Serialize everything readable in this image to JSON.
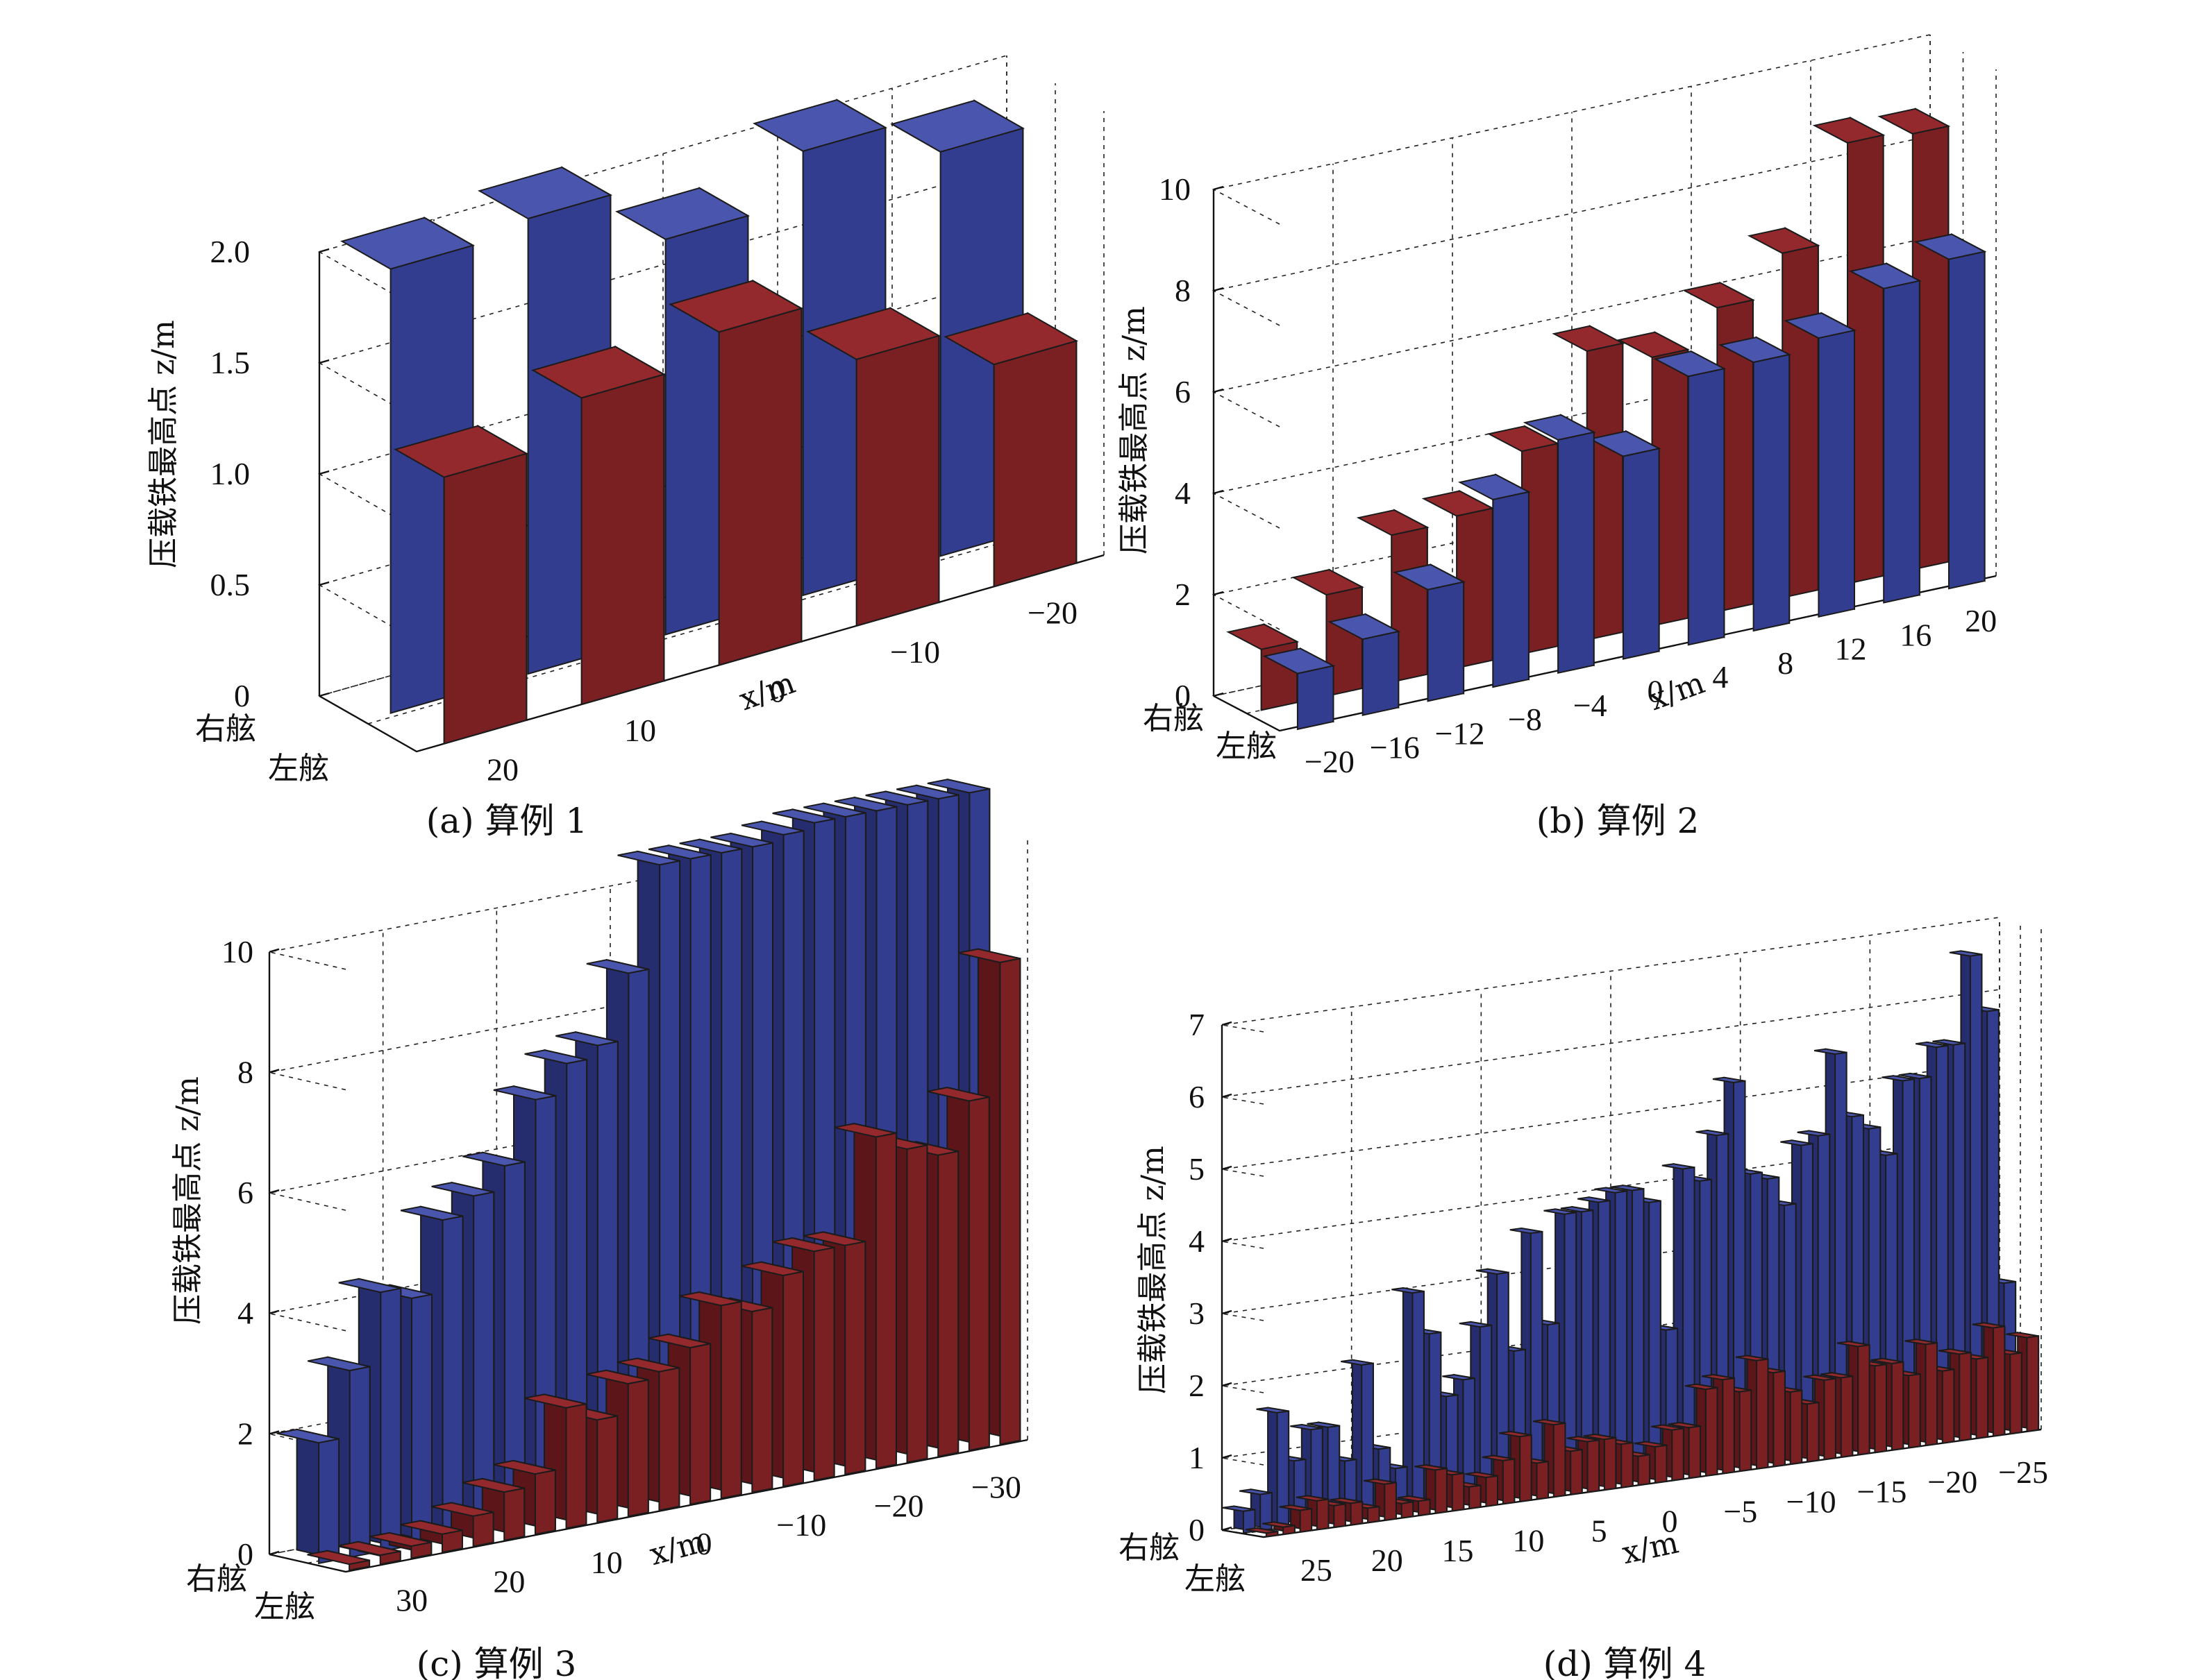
{
  "side_labels": [
    "右舷",
    "左舷"
  ],
  "colors": {
    "starboard_front": "#333d8f",
    "starboard_top": "#4a55ad",
    "starboard_side": "#252d6e",
    "port_front": "#7a1f22",
    "port_top": "#93292d",
    "port_side": "#5c1619"
  },
  "chart_data": [
    {
      "id": "a",
      "type": "bar3d",
      "caption": "(a) 算例 1",
      "ylabel": "压载铁最高点 z/m",
      "xlabel": "x/m",
      "zticks": [
        "0",
        "0.5",
        "1.0",
        "1.5",
        "2.0"
      ],
      "zmax": 2.0,
      "xticks": [
        "20",
        "10",
        "0",
        "−10",
        "−20"
      ],
      "categories": [
        20,
        10,
        0,
        -10,
        -20
      ],
      "series": [
        {
          "side": "starboard",
          "values": [
            2.0,
            2.05,
            1.78,
            2.0,
            1.82
          ]
        },
        {
          "side": "port",
          "values": [
            1.2,
            1.38,
            1.5,
            1.2,
            1.0
          ]
        }
      ]
    },
    {
      "id": "b",
      "type": "bar3d",
      "caption": "(b) 算例 2",
      "ylabel": "压载铁最高点 z/m",
      "xlabel": "x/m",
      "zticks": [
        "0",
        "2",
        "4",
        "6",
        "8",
        "10"
      ],
      "zmax": 10,
      "xticks": [
        "−20",
        "−16",
        "−12",
        "−8",
        "−4",
        "0",
        "4",
        "8",
        "12",
        "16",
        "20"
      ],
      "categories": [
        -20,
        -16,
        -12,
        -8,
        -4,
        0,
        4,
        8,
        12,
        16,
        20
      ],
      "series": [
        {
          "side": "port",
          "values": [
            1.2,
            2.0,
            2.9,
            3.0,
            4.0,
            5.7,
            5.3,
            6.0,
            6.8,
            8.7,
            8.6
          ]
        },
        {
          "side": "starboard",
          "values": [
            1.1,
            1.5,
            2.2,
            3.7,
            4.6,
            4.0,
            5.3,
            5.3,
            5.5,
            6.2,
            6.5
          ]
        }
      ]
    },
    {
      "id": "c",
      "type": "bar3d",
      "caption": "(c) 算例 3",
      "ylabel": "压载铁最高点 z/m",
      "xlabel": "x/m",
      "zticks": [
        "0",
        "2",
        "4",
        "6",
        "8",
        "10"
      ],
      "zmax": 11,
      "xticks": [
        "30",
        "20",
        "10",
        "0",
        "−10",
        "−20",
        "−30"
      ],
      "categories": [
        27,
        25,
        23,
        21,
        19,
        17,
        15,
        13,
        11,
        9,
        7,
        5,
        3,
        1,
        -1,
        -3,
        -5,
        -7,
        -9,
        -11,
        -13,
        -15
      ],
      "series": [
        {
          "side": "starboard",
          "values": [
            2.0,
            3.1,
            4.3,
            4.1,
            5.3,
            5.6,
            6.0,
            7.0,
            7.5,
            7.7,
            8.8,
            10.5,
            10.5,
            10.5,
            10.5,
            10.6,
            10.7,
            10.7,
            10.7,
            10.7,
            10.7,
            10.7
          ]
        },
        {
          "side": "port",
          "values": [
            0.1,
            0.15,
            0.2,
            0.3,
            0.5,
            0.8,
            1.0,
            2.0,
            1.7,
            2.2,
            2.3,
            2.6,
            3.2,
            3.0,
            3.5,
            3.8,
            3.8,
            5.5,
            5.2,
            5.0,
            5.8,
            8.0
          ]
        }
      ]
    },
    {
      "id": "d",
      "type": "bar3d",
      "caption": "(d) 算例 4",
      "ylabel": "压载铁最高点 z/m",
      "xlabel": "x/m",
      "zticks": [
        "0",
        "1",
        "2",
        "3",
        "4",
        "5",
        "6",
        "7"
      ],
      "zmax": 7.5,
      "xticks": [
        "25",
        "20",
        "15",
        "10",
        "5",
        "0",
        "−5",
        "−10",
        "−15",
        "−20",
        "−25"
      ],
      "categories": [
        24,
        23,
        22,
        21,
        20,
        19,
        18,
        17,
        16,
        15,
        14,
        13,
        12,
        11,
        10,
        9,
        8,
        7,
        6,
        5,
        4,
        3,
        2,
        1,
        0,
        -1,
        -2,
        -3,
        -4,
        -5,
        -6,
        -7,
        -8,
        -9,
        -10,
        -11,
        -12,
        -13,
        -14,
        -15,
        -16,
        -17,
        -18,
        -19,
        -20,
        -21
      ],
      "series": [
        {
          "side": "starboard",
          "values": [
            0.3,
            0.5,
            1.6,
            0.9,
            1.3,
            1.3,
            0.8,
            2.1,
            0.9,
            0.6,
            3.0,
            2.4,
            1.5,
            1.7,
            2.4,
            3.1,
            2.0,
            3.6,
            2.3,
            3.8,
            3.8,
            3.9,
            4.0,
            4.0,
            3.8,
            2.0,
            4.2,
            4.0,
            4.6,
            5.3,
            4.0,
            3.9,
            3.5,
            4.3,
            4.4,
            5.5,
            4.6,
            4.4,
            4.0,
            5.0,
            5.0,
            5.4,
            5.4,
            6.6,
            5.8,
            2.0
          ]
        },
        {
          "side": "port",
          "values": [
            0.05,
            0.1,
            0.3,
            0.4,
            0.3,
            0.3,
            0.2,
            0.5,
            0.2,
            0.2,
            0.6,
            0.5,
            0.3,
            0.4,
            0.6,
            0.9,
            0.5,
            1.0,
            0.6,
            0.7,
            0.7,
            0.6,
            0.4,
            0.5,
            0.7,
            0.7,
            1.2,
            1.3,
            1.1,
            1.5,
            1.3,
            1.0,
            0.8,
            1.1,
            1.1,
            1.5,
            1.2,
            1.2,
            1.0,
            1.4,
            1.0,
            1.2,
            1.1,
            1.5,
            1.1,
            1.3
          ]
        }
      ]
    }
  ]
}
